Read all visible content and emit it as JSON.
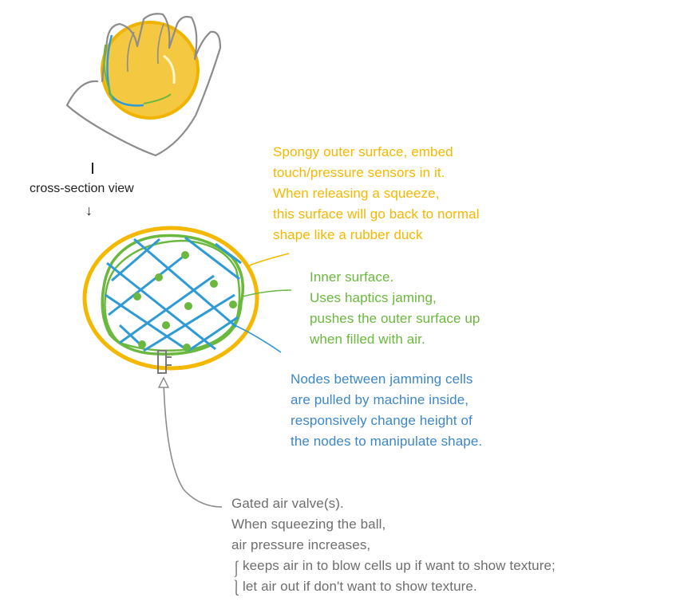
{
  "cross_section": {
    "label": "cross-section view",
    "arrow": "↓"
  },
  "notes": {
    "outer": {
      "color": "#f5b800",
      "lines": [
        "Spongy outer surface, embed",
        "touch/pressure sensors in it.",
        "When releasing a squeeze,",
        "this surface will go back to normal",
        "shape like a rubber duck"
      ]
    },
    "inner": {
      "color": "#6ab83d",
      "lines": [
        "Inner surface.",
        "Uses haptics jaming,",
        "pushes the outer surface up",
        "when filled with air."
      ]
    },
    "nodes": {
      "color": "#3d87c9",
      "lines": [
        "Nodes between jamming cells",
        "are pulled by machine inside,",
        "responsively change height of",
        "the nodes to manipulate shape."
      ]
    },
    "valve": {
      "color": "#6e6e6e",
      "lines": [
        "Gated air valve(s).",
        "When squeezing the ball,",
        "air pressure increases,"
      ],
      "options": [
        "keeps air in to blow cells up if want to show texture;",
        "let air out if don't want to show texture."
      ]
    }
  },
  "colors": {
    "ball_fill": "#f5c842",
    "outer_ring": "#f5b800",
    "inner_ring": "#6ab83d",
    "mesh": "#2e9bd6",
    "hand": "#8c8c8c",
    "valve": "#7a7a7a"
  },
  "icons": [
    "hand-icon",
    "ball-icon",
    "valve-icon"
  ]
}
